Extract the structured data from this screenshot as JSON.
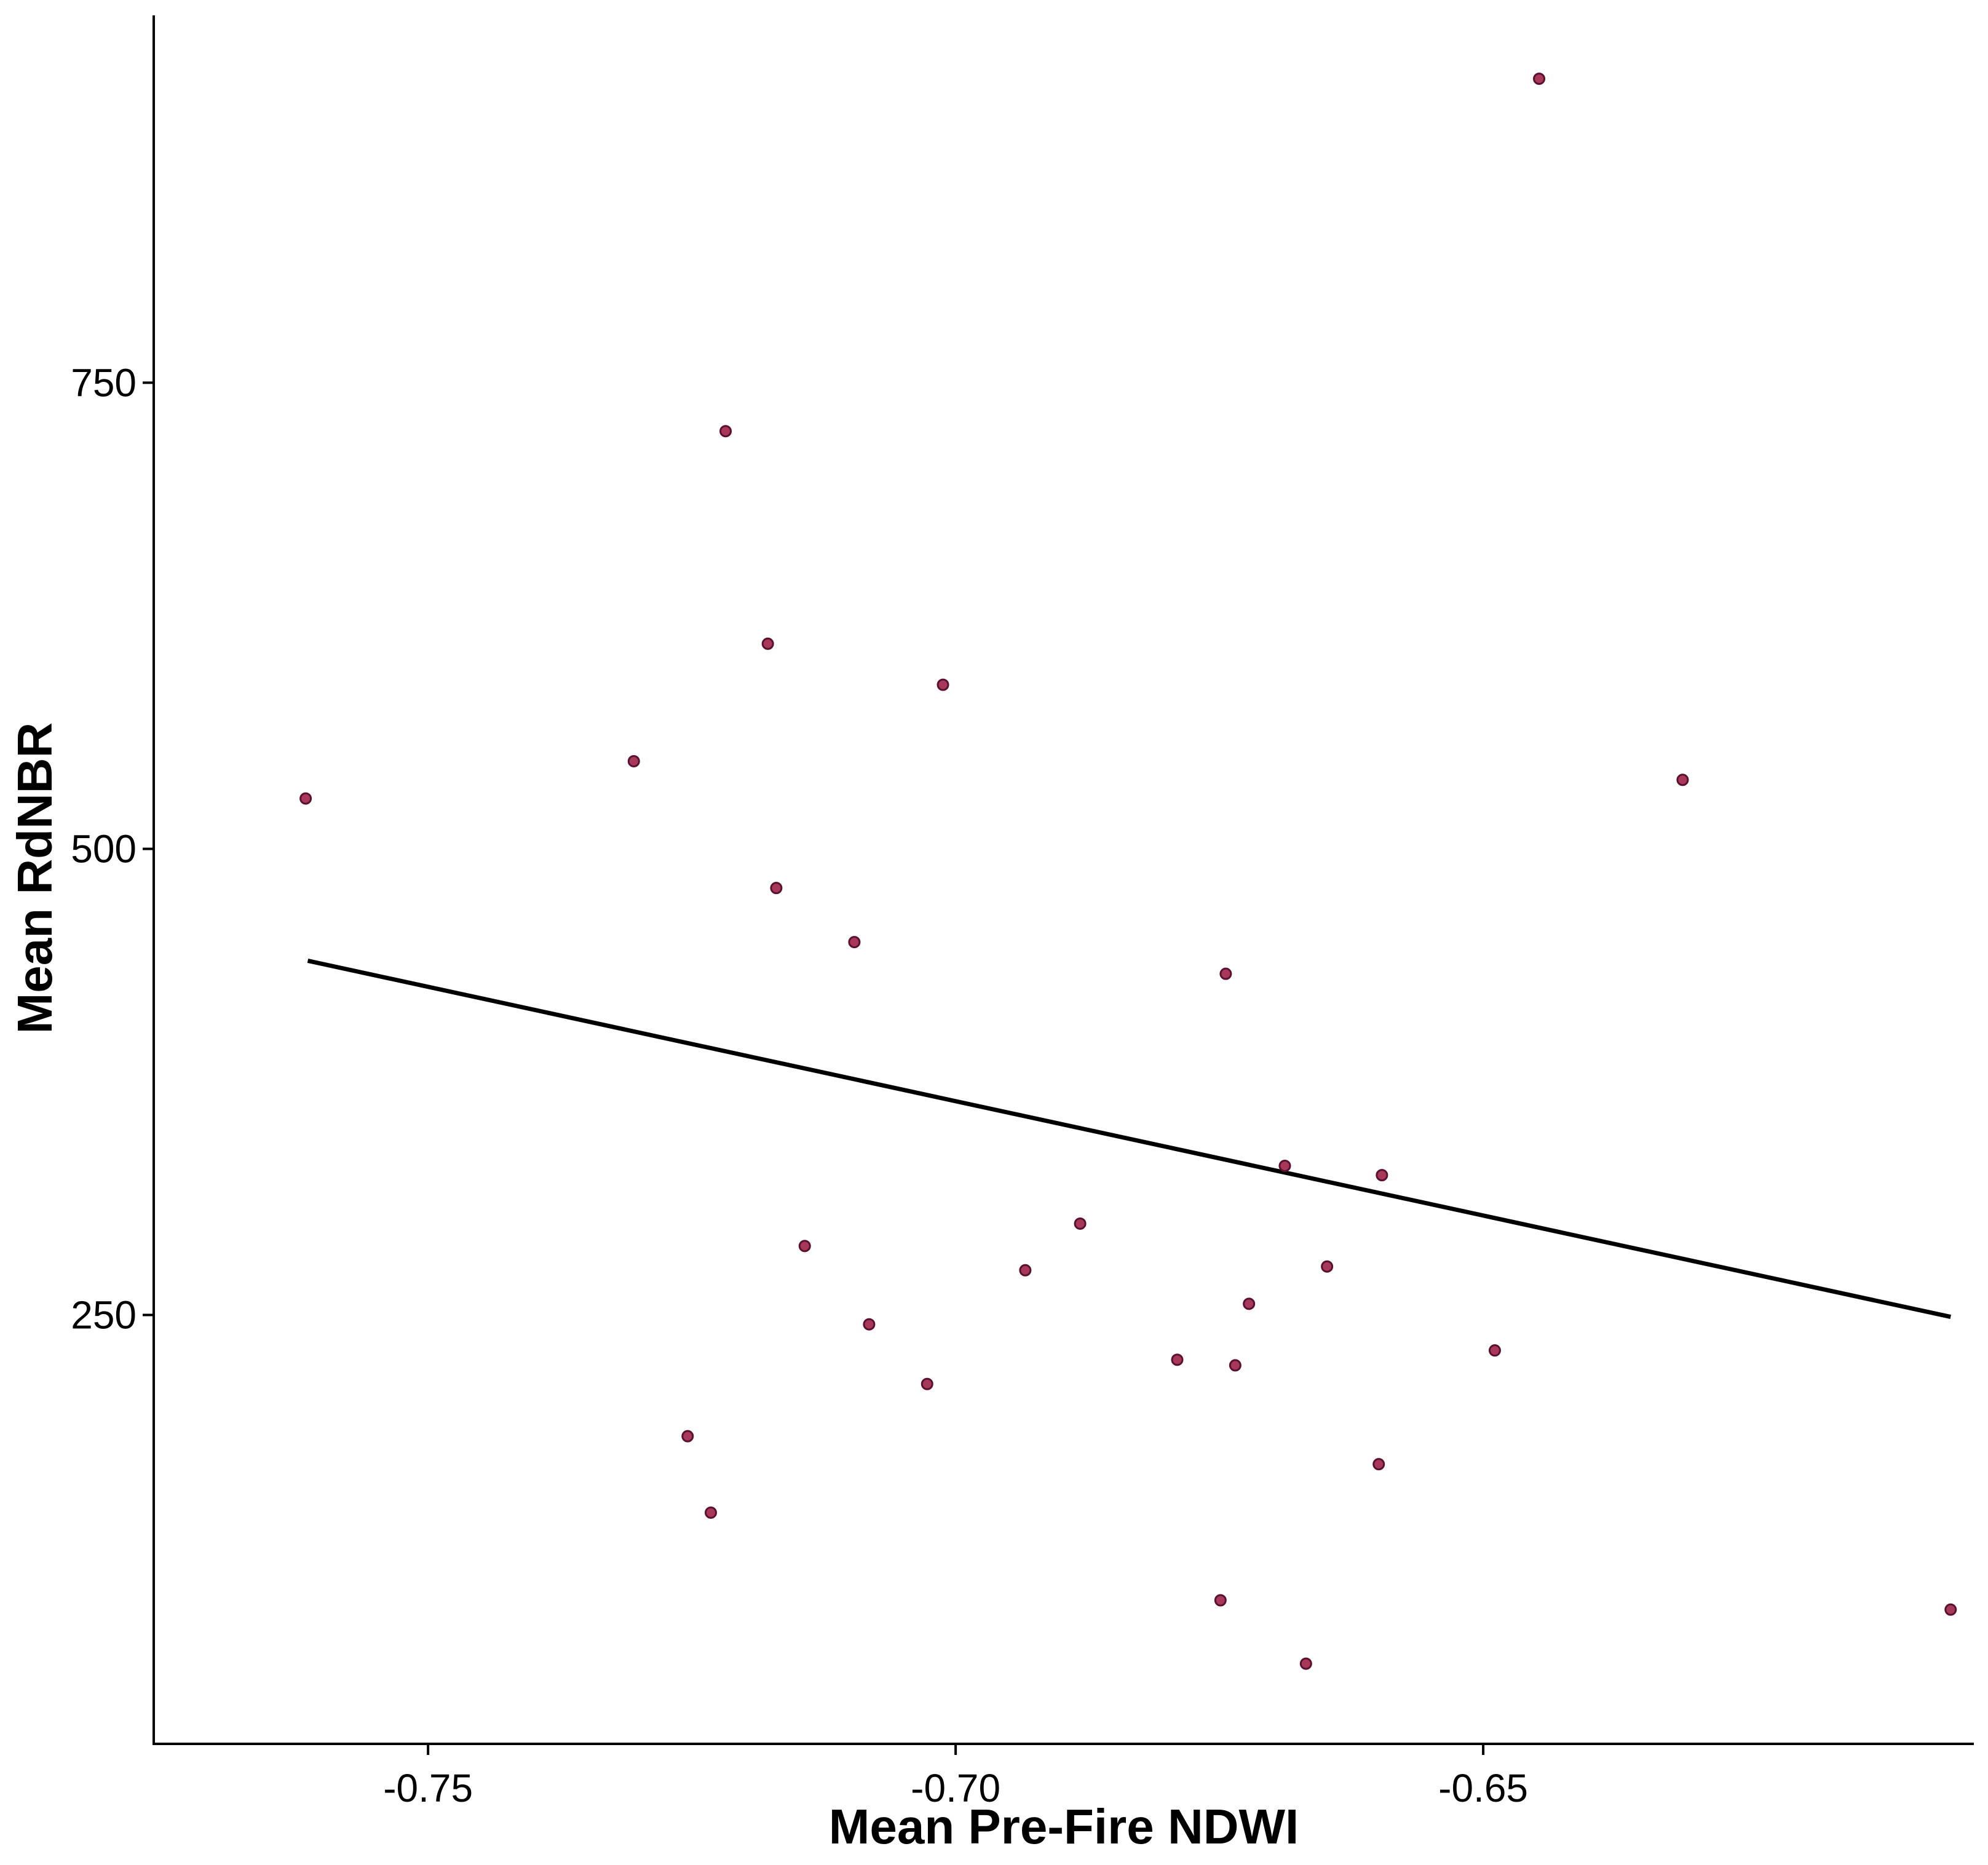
{
  "chart_data": {
    "type": "scatter",
    "title": "",
    "xlabel": "Mean Pre-Fire NDWI",
    "ylabel": "Mean RdNBR",
    "xlim": [
      -0.776,
      -0.6035
    ],
    "ylim": [
      20,
      947
    ],
    "x_ticks": [
      {
        "value": -0.75,
        "label": "-0.75"
      },
      {
        "value": -0.7,
        "label": "-0.70"
      },
      {
        "value": -0.65,
        "label": "-0.65"
      }
    ],
    "y_ticks": [
      {
        "value": 250,
        "label": "250"
      },
      {
        "value": 500,
        "label": "500"
      },
      {
        "value": 750,
        "label": "750"
      }
    ],
    "grid": false,
    "legend": "none",
    "point_color": "#a8385a",
    "point_edge_color": "#5a1030",
    "line_color": "#000000",
    "points": [
      {
        "x": -0.7616,
        "y": 527
      },
      {
        "x": -0.7305,
        "y": 547
      },
      {
        "x": -0.7218,
        "y": 724
      },
      {
        "x": -0.7178,
        "y": 610
      },
      {
        "x": -0.717,
        "y": 479
      },
      {
        "x": -0.7096,
        "y": 450
      },
      {
        "x": -0.7012,
        "y": 588
      },
      {
        "x": -0.6744,
        "y": 433
      },
      {
        "x": -0.6311,
        "y": 537
      },
      {
        "x": -0.6447,
        "y": 913
      },
      {
        "x": -0.6934,
        "y": 274
      },
      {
        "x": -0.6882,
        "y": 299
      },
      {
        "x": -0.7143,
        "y": 287
      },
      {
        "x": -0.6688,
        "y": 330
      },
      {
        "x": -0.6596,
        "y": 325
      },
      {
        "x": -0.6648,
        "y": 276
      },
      {
        "x": -0.6722,
        "y": 256
      },
      {
        "x": -0.7082,
        "y": 245
      },
      {
        "x": -0.7027,
        "y": 213
      },
      {
        "x": -0.679,
        "y": 226
      },
      {
        "x": -0.6735,
        "y": 223
      },
      {
        "x": -0.6489,
        "y": 231
      },
      {
        "x": -0.7254,
        "y": 185
      },
      {
        "x": -0.7232,
        "y": 144
      },
      {
        "x": -0.6599,
        "y": 170
      },
      {
        "x": -0.6749,
        "y": 97
      },
      {
        "x": -0.6668,
        "y": 63
      },
      {
        "x": -0.6057,
        "y": 92
      }
    ],
    "fit_line": {
      "type": "linear",
      "x": [
        -0.7614,
        -0.6057
      ],
      "y": [
        440,
        249
      ]
    }
  }
}
